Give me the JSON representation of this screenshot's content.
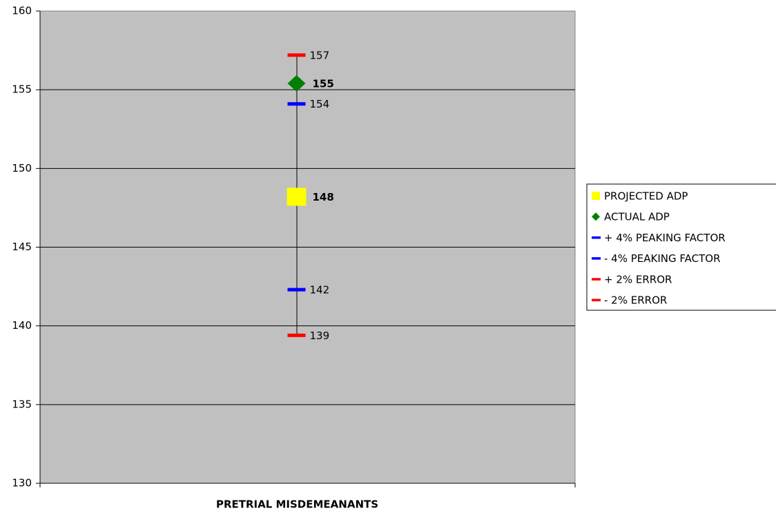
{
  "chart_data": {
    "type": "line",
    "categories": [
      "PRETRIAL MISDEMEANANTS"
    ],
    "ylim": [
      130,
      160
    ],
    "yticks": [
      130,
      135,
      140,
      145,
      150,
      155,
      160
    ],
    "grid": true,
    "legend": "right",
    "series": [
      {
        "name": "PROJECTED ADP",
        "color": "#ffff00",
        "marker": "square",
        "values": [
          148.2
        ],
        "value_labels": [
          "148"
        ]
      },
      {
        "name": "ACTUAL ADP",
        "color": "#008000",
        "marker": "diamond",
        "values": [
          155.4
        ],
        "value_labels": [
          "155"
        ]
      },
      {
        "name": "+ 4% PEAKING FACTOR",
        "color": "#0000ff",
        "marker": "dash",
        "values": [
          154.1
        ],
        "value_labels": [
          "154"
        ]
      },
      {
        "name": "- 4% PEAKING FACTOR",
        "color": "#0000ff",
        "marker": "dash",
        "values": [
          142.3
        ],
        "value_labels": [
          "142"
        ]
      },
      {
        "name": "+ 2% ERROR",
        "color": "#ff0000",
        "marker": "dash",
        "values": [
          157.2
        ],
        "value_labels": [
          "157"
        ]
      },
      {
        "name": "- 2% ERROR",
        "color": "#ff0000",
        "marker": "dash",
        "values": [
          139.4
        ],
        "value_labels": [
          "139"
        ]
      }
    ]
  }
}
